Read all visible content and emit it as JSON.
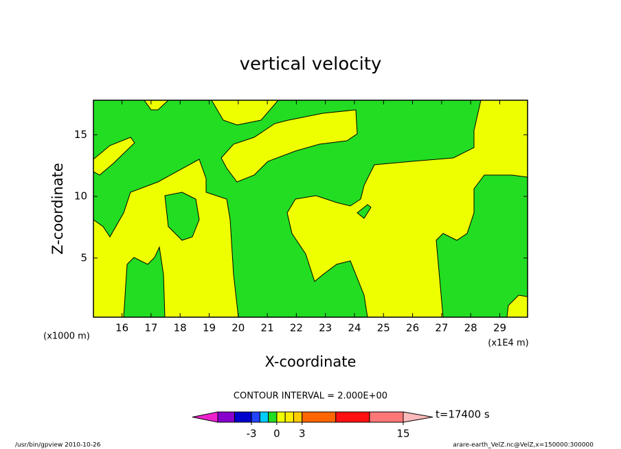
{
  "chart_data": {
    "type": "contour",
    "title": "vertical velocity",
    "x_label": "X-coordinate",
    "y_label": "Z-coordinate",
    "x_unit_left": "(x1000 m)",
    "x_unit_right": "(x1E4 m)",
    "xlim": [
      15,
      30
    ],
    "xticks": [
      16,
      17,
      18,
      19,
      20,
      21,
      22,
      23,
      24,
      25,
      26,
      27,
      28,
      29
    ],
    "ylim": [
      0.2,
      17.8
    ],
    "yticks": [
      5,
      10,
      15
    ],
    "fill_colors": {
      "positive": "#eeff00",
      "negative": "#22dd22"
    },
    "contour_interval": "CONTOUR INTERVAL = 2.000E+00",
    "colorbar": {
      "levels": [
        -7,
        -5,
        -3,
        -2,
        -1,
        0,
        1,
        2,
        3,
        7,
        11,
        15
      ],
      "colors": [
        "#ee22cc",
        "#8800cc",
        "#0000cc",
        "#2244ff",
        "#00ccff",
        "#22dd22",
        "#eeff00",
        "#ffee00",
        "#ffcc00",
        "#ff6600",
        "#ff1111",
        "#ff7777",
        "#ffbbbb"
      ],
      "ticks": [
        -3,
        0,
        3,
        15
      ]
    },
    "time_label": "t=17400 s",
    "footer_left": "/usr/bin/gpview  2010-10-26",
    "footer_right": "arare-earth_VelZ.nc@VelZ,x=150000:300000"
  }
}
